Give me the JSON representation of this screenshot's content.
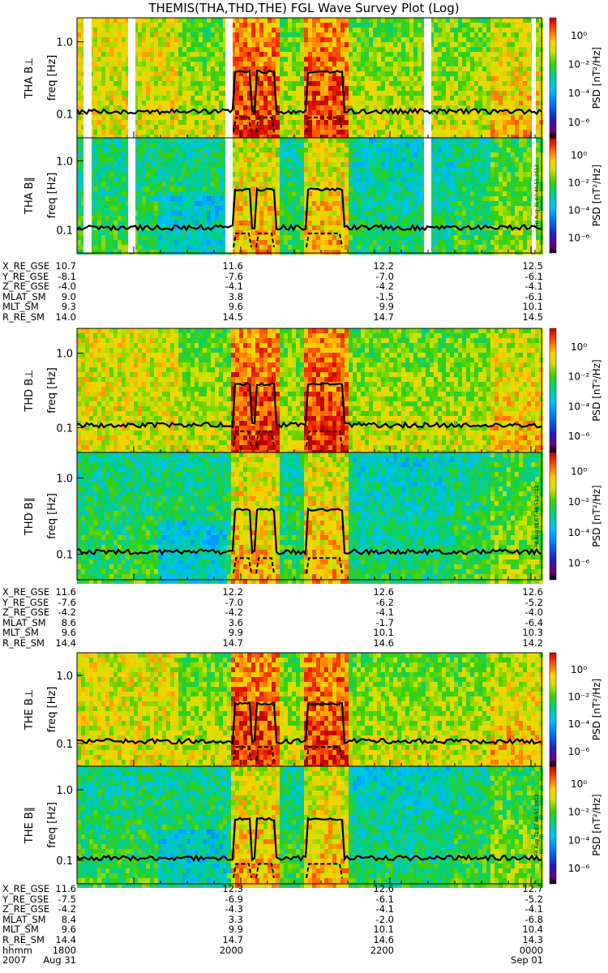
{
  "title": "THEMIS(THA,THD,THE) FGL Wave Survey Plot (Log)",
  "colors": {
    "line": "#000000",
    "gap": "#ffffff"
  },
  "chart_data": {
    "type": "heatmap",
    "time_ticks": [
      "1800",
      "2000",
      "2200",
      "0000"
    ],
    "date_labels": [
      "2007",
      "Aug 31",
      "Sep 01"
    ],
    "time_row_label": "hhmm",
    "yticks": [
      "1.0",
      "0.1"
    ],
    "ylabel": "freq [Hz]",
    "colorbar": {
      "label": "PSD [nT²/Hz]",
      "ticks": [
        "10⁰",
        "10⁻²",
        "10⁻⁴",
        "10⁻⁶"
      ]
    },
    "stamp": "Fri Aug 31 07:48:51 2012",
    "panels": [
      {
        "name": "THA B⊥",
        "probe": "tha",
        "comp": "perp"
      },
      {
        "name": "THA B∥",
        "probe": "tha",
        "comp": "par"
      },
      {
        "name": "THD B⊥",
        "probe": "thd",
        "comp": "perp"
      },
      {
        "name": "THD B∥",
        "probe": "thd",
        "comp": "par"
      },
      {
        "name": "THE B⊥",
        "probe": "the",
        "comp": "perp"
      },
      {
        "name": "THE B∥",
        "probe": "the",
        "comp": "par"
      }
    ],
    "ephemeris_labels": [
      "X_RE_GSE",
      "Y_RE_GSE",
      "Z_RE_GSE",
      "MLAT_SM",
      "MLT_SM",
      "R_RE_SM"
    ],
    "ephemeris": [
      {
        "probe": "THA",
        "rows": [
          [
            "10.7",
            "11.6",
            "12.2",
            "12.5"
          ],
          [
            "-8.1",
            "-7.6",
            "-7.0",
            "-6.1"
          ],
          [
            "-4.0",
            "-4.1",
            "-4.2",
            "-4.1"
          ],
          [
            "9.0",
            "3.8",
            "-1.5",
            "-6.1"
          ],
          [
            "9.3",
            "9.6",
            "9.9",
            "10.1"
          ],
          [
            "14.0",
            "14.5",
            "14.7",
            "14.5"
          ]
        ]
      },
      {
        "probe": "THD",
        "rows": [
          [
            "11.6",
            "12.2",
            "12.6",
            "12.6"
          ],
          [
            "-7.6",
            "-7.0",
            "-6.2",
            "-5.2"
          ],
          [
            "-4.2",
            "-4.2",
            "-4.1",
            "-4.0"
          ],
          [
            "8.6",
            "3.6",
            "-1.7",
            "-6.4"
          ],
          [
            "9.6",
            "9.9",
            "10.1",
            "10.3"
          ],
          [
            "14.4",
            "14.7",
            "14.6",
            "14.2"
          ]
        ]
      },
      {
        "probe": "THE",
        "rows": [
          [
            "11.6",
            "12.3",
            "12.6",
            "12.7"
          ],
          [
            "-7.5",
            "-6.9",
            "-6.1",
            "-5.2"
          ],
          [
            "-4.2",
            "-4.3",
            "-4.1",
            "-4.1"
          ],
          [
            "8.4",
            "3.3",
            "-2.0",
            "-6.8"
          ],
          [
            "9.6",
            "9.9",
            "10.1",
            "10.4"
          ],
          [
            "14.4",
            "14.7",
            "14.6",
            "14.3"
          ]
        ]
      }
    ]
  }
}
